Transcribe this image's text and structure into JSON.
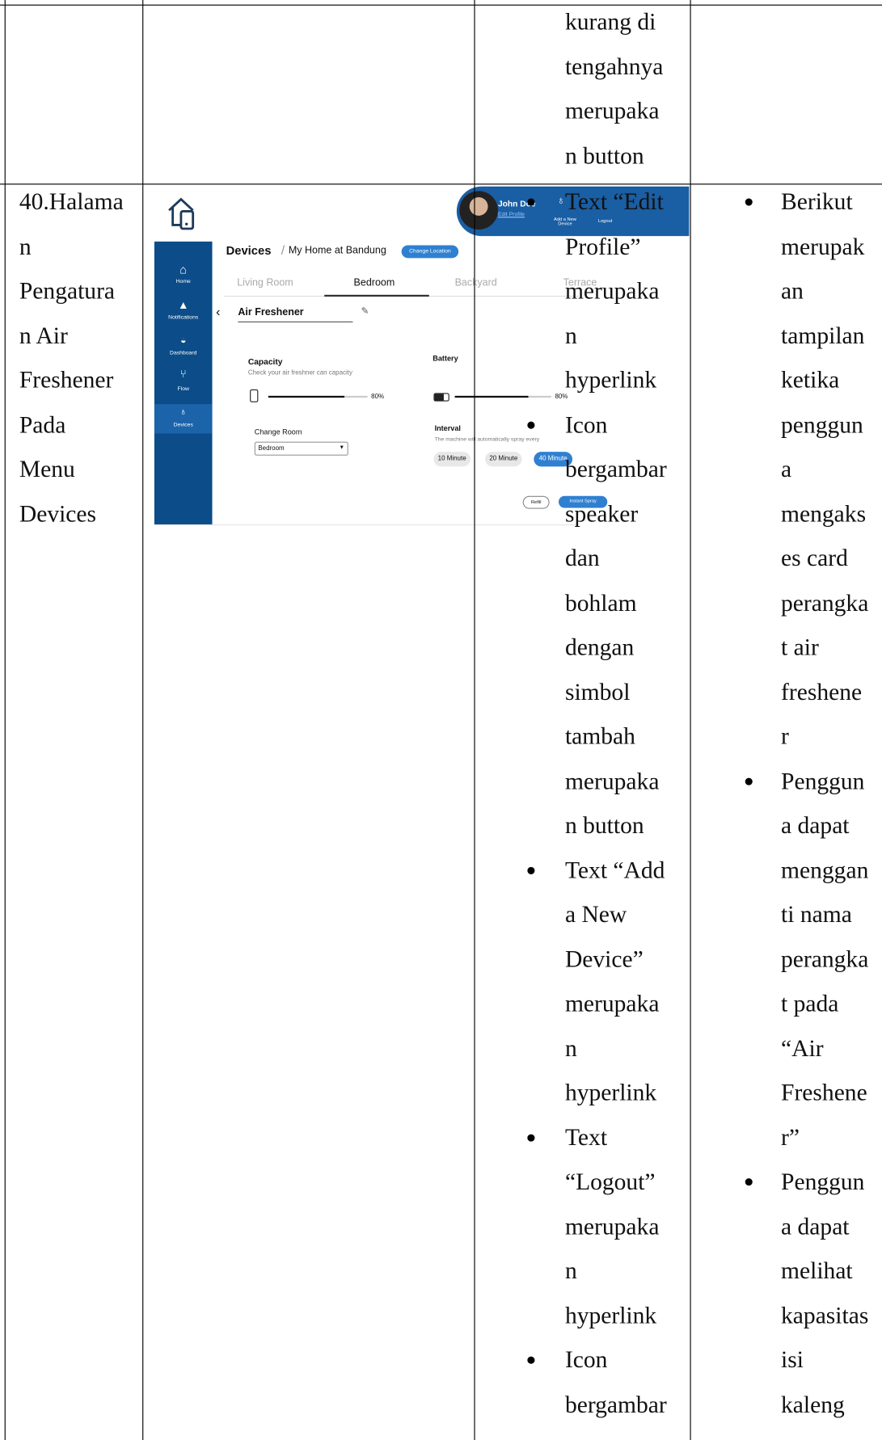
{
  "table": {
    "row1": {
      "col3": [
        "kurang di",
        "tengahnya",
        "merupaka",
        "n button"
      ]
    },
    "row2": {
      "col1": [
        "40.Halama",
        "n",
        "Pengatura",
        "n Air",
        "Freshener",
        "Pada",
        "Menu",
        "Devices"
      ],
      "screenshot": {
        "sidebar": [
          "Home",
          "Notifications",
          "Dashboard",
          "Flow",
          "Devices"
        ],
        "title": "Devices",
        "location": "My Home at Bandung",
        "change_location": "Change Location",
        "tabs": [
          "Living Room",
          "Bedroom",
          "Backyard",
          "Terrace"
        ],
        "device_name": "Air Freshener",
        "capacity": "Capacity",
        "capacity_hint": "Check your air freshner can capacity",
        "capacity_value": "80%",
        "battery": "Battery",
        "battery_value": "80%",
        "change_room": "Change Room",
        "room": "Bedroom",
        "interval": "Interval",
        "interval_hint": "The machine will automatically spray every",
        "interval_options": [
          "10 Minute",
          "20 Minute",
          "40 Minute"
        ],
        "refill": "Refill",
        "instant_spray": "Instant Spray",
        "user": "John Doe",
        "edit_profile": "Edit Profile",
        "add_device": "Add a New Device",
        "logout": "Logout"
      },
      "col3": [
        [
          "Text “Edit",
          "Profile”",
          "merupaka",
          "n",
          "hyperlink"
        ],
        [
          "Icon",
          "bergambar",
          "speaker",
          "dan",
          "bohlam",
          "dengan",
          "simbol",
          "tambah",
          "merupaka",
          "n button"
        ],
        [
          "Text “Add",
          "a New",
          "Device”",
          "merupaka",
          "n",
          "hyperlink"
        ],
        [
          "Text",
          "“Logout”",
          "merupaka",
          "n",
          "hyperlink"
        ],
        [
          "Icon",
          "bergambar"
        ]
      ],
      "col4": [
        [
          "Berikut",
          "merupak",
          "an",
          "tampilan",
          "ketika",
          "penggun",
          "a",
          "mengaks",
          "es card",
          "perangka",
          "t air",
          "freshene",
          "r"
        ],
        [
          "Penggun",
          "a dapat",
          "menggan",
          "ti nama",
          "perangka",
          "t pada",
          "“Air",
          "Freshene",
          "r”"
        ],
        [
          "Penggun",
          "a dapat",
          "melihat",
          "kapasitas",
          "isi",
          "kaleng"
        ]
      ]
    }
  }
}
